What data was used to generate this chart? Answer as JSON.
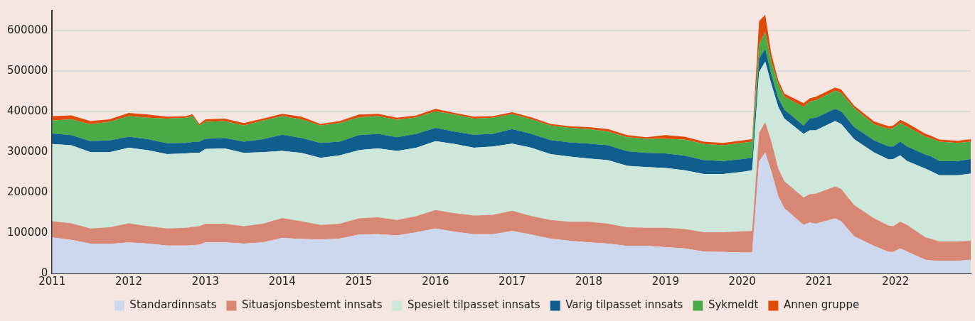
{
  "chart_data": {
    "type": "area",
    "stacked": true,
    "grid": "y",
    "legend": "bottom",
    "x": [
      2011,
      2011.25,
      2011.5,
      2011.75,
      2012,
      2012.25,
      2012.5,
      2012.75,
      2012.83,
      2012.92,
      2013,
      2013.25,
      2013.5,
      2013.75,
      2014,
      2014.25,
      2014.5,
      2014.75,
      2015,
      2015.25,
      2015.5,
      2015.75,
      2016,
      2016.25,
      2016.5,
      2016.75,
      2017,
      2017.25,
      2017.5,
      2017.75,
      2018,
      2018.25,
      2018.5,
      2018.75,
      2019,
      2019.25,
      2019.5,
      2019.75,
      2020,
      2020.13,
      2020.22,
      2020.3,
      2020.38,
      2020.47,
      2020.55,
      2020.8,
      2020.88,
      2020.96,
      2021.21,
      2021.29,
      2021.46,
      2021.72,
      2021.91,
      2021.97,
      2022.06,
      2022.15,
      2022.39,
      2022.47,
      2022.57,
      2022.81,
      2022.98
    ],
    "xlim": [
      2011,
      2022.98
    ],
    "xticks": [
      2011,
      2012,
      2013,
      2014,
      2015,
      2016,
      2017,
      2018,
      2019,
      2020,
      2021,
      2022
    ],
    "ylim": [
      0,
      650000
    ],
    "yticks": [
      0,
      100000,
      200000,
      300000,
      400000,
      500000,
      600000
    ],
    "series": [
      {
        "name": "Standardinnsats",
        "color": "#cdd7ee",
        "values": [
          89000,
          83000,
          74000,
          73000,
          77000,
          74000,
          69000,
          69000,
          70000,
          71000,
          77000,
          77000,
          74000,
          77000,
          88000,
          85000,
          84000,
          86000,
          96000,
          97000,
          94000,
          102000,
          111000,
          103000,
          97000,
          97000,
          105000,
          96000,
          86000,
          81000,
          77000,
          74000,
          68000,
          68000,
          65000,
          62000,
          54000,
          53000,
          52000,
          52000,
          277000,
          299000,
          252000,
          191000,
          161000,
          120000,
          126000,
          123000,
          136000,
          129000,
          92000,
          68000,
          53000,
          53000,
          62000,
          54000,
          34000,
          32000,
          31000,
          31000,
          34000
        ]
      },
      {
        "name": "Situasjonsbestemt innsats",
        "color": "#d88775",
        "values": [
          40000,
          41000,
          37000,
          41000,
          47000,
          43000,
          42000,
          44000,
          45000,
          46000,
          46000,
          46000,
          43000,
          46000,
          49000,
          44000,
          36000,
          37000,
          40000,
          42000,
          38000,
          40000,
          46000,
          46000,
          46000,
          48000,
          50000,
          46000,
          46000,
          47000,
          51000,
          49000,
          46000,
          45000,
          48000,
          48000,
          48000,
          49000,
          52000,
          53000,
          71000,
          75000,
          74000,
          68000,
          67000,
          68000,
          70000,
          74000,
          79000,
          80000,
          77000,
          68000,
          65000,
          64000,
          66000,
          66000,
          55000,
          53000,
          48000,
          48000,
          47000
        ]
      },
      {
        "name": "Spesielt tilpasset innsats",
        "color": "#cde7da",
        "values": [
          191000,
          193000,
          189000,
          186000,
          187000,
          188000,
          184000,
          184000,
          183000,
          181000,
          185000,
          186000,
          181000,
          177000,
          166000,
          169000,
          166000,
          169000,
          169000,
          170000,
          171000,
          169000,
          170000,
          171000,
          168000,
          169000,
          166000,
          169000,
          163000,
          161000,
          156000,
          157000,
          152000,
          150000,
          148000,
          145000,
          144000,
          144000,
          147000,
          150000,
          150000,
          150000,
          142000,
          153000,
          155000,
          157000,
          158000,
          157000,
          162000,
          161000,
          163000,
          163000,
          164000,
          166000,
          164000,
          158000,
          170000,
          167000,
          164000,
          164000,
          166000
        ]
      },
      {
        "name": "Varig tilpasset innsats",
        "color": "#105e8d",
        "values": [
          26000,
          25000,
          27000,
          29000,
          27000,
          27000,
          27000,
          26000,
          27000,
          28000,
          25000,
          26000,
          28000,
          32000,
          40000,
          37000,
          37000,
          34000,
          37000,
          36000,
          34000,
          34000,
          33000,
          31000,
          32000,
          31000,
          36000,
          34000,
          35000,
          35000,
          37000,
          37000,
          36000,
          35000,
          36000,
          36000,
          34000,
          32000,
          32000,
          31000,
          34000,
          31000,
          24000,
          22000,
          22000,
          21000,
          29000,
          31000,
          30000,
          31000,
          30000,
          30000,
          32000,
          31000,
          34000,
          36000,
          35000,
          37000,
          35000,
          35000,
          36000
        ]
      },
      {
        "name": "Sykmeldt",
        "color": "#4aab46",
        "values": [
          32000,
          39000,
          42000,
          46000,
          51000,
          53000,
          61000,
          62000,
          64000,
          40000,
          42000,
          42000,
          40000,
          46000,
          46000,
          46000,
          43000,
          46000,
          44000,
          44000,
          43000,
          41000,
          41000,
          42000,
          40000,
          40000,
          37000,
          36000,
          36000,
          36000,
          36000,
          34000,
          35000,
          35000,
          36000,
          40000,
          40000,
          39000,
          40000,
          40000,
          35000,
          42000,
          31000,
          34000,
          32000,
          46000,
          42000,
          43000,
          45000,
          45000,
          47000,
          40000,
          43000,
          46000,
          46000,
          49000,
          44000,
          45000,
          48000,
          45000,
          43000
        ]
      },
      {
        "name": "Annen gruppe",
        "color": "#e04a0a",
        "values": [
          11000,
          10000,
          8000,
          6000,
          8000,
          8000,
          5000,
          4000,
          5000,
          4000,
          6000,
          6000,
          6000,
          5000,
          6000,
          7000,
          4000,
          5000,
          7000,
          6000,
          5000,
          5000,
          6000,
          4000,
          5000,
          4000,
          5000,
          5000,
          4000,
          4000,
          5000,
          6000,
          5000,
          4000,
          9000,
          7000,
          6000,
          6000,
          6000,
          6000,
          57000,
          43000,
          20000,
          10000,
          8000,
          9000,
          8000,
          9000,
          8000,
          9000,
          6000,
          7000,
          7000,
          6000,
          8000,
          9000,
          7000,
          6000,
          5000,
          5000,
          6000
        ]
      }
    ]
  }
}
